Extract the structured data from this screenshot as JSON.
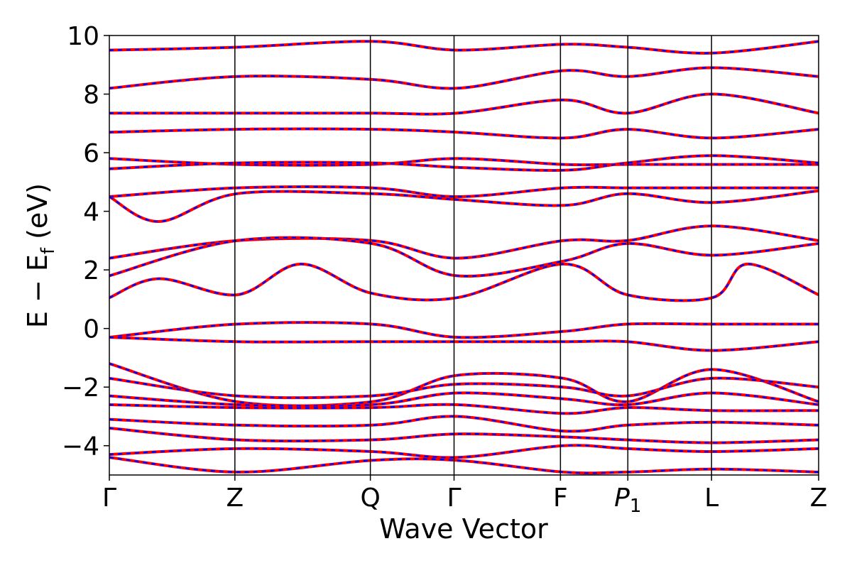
{
  "chart_data": {
    "type": "line",
    "title": "",
    "xlabel": "Wave Vector",
    "ylabel_main": "E − E",
    "ylabel_sub": "f",
    "ylabel_unit": " (eV)",
    "ylim": [
      -5,
      10
    ],
    "yticks": [
      -4,
      -2,
      0,
      2,
      4,
      6,
      8,
      10
    ],
    "ytick_labels": [
      "−4",
      "−2",
      "0",
      "2",
      "4",
      "6",
      "8",
      "10"
    ],
    "kpath": [
      {
        "label": "Γ",
        "x": 0.0
      },
      {
        "label": "Z",
        "x": 0.177
      },
      {
        "label": "Q",
        "x": 0.368
      },
      {
        "label": "Γ",
        "x": 0.486
      },
      {
        "label": "F",
        "x": 0.636
      },
      {
        "label": "P",
        "sub": "1",
        "x": 0.731
      },
      {
        "label": "L",
        "x": 0.849
      },
      {
        "label": "Z",
        "x": 1.0
      }
    ],
    "xlim": [
      0,
      1.0
    ],
    "grid": false,
    "legend": "none",
    "colors": {
      "series_a": "#ff0000",
      "series_b": "#0000ff"
    },
    "series": [
      {
        "values": [
          [
            0,
            9.5
          ],
          [
            0.18,
            9.6
          ],
          [
            0.37,
            9.8
          ],
          [
            0.49,
            9.5
          ],
          [
            0.64,
            9.7
          ],
          [
            0.73,
            9.6
          ],
          [
            0.85,
            9.4
          ],
          [
            1.0,
            9.8
          ]
        ]
      },
      {
        "values": [
          [
            0,
            8.2
          ],
          [
            0.18,
            8.6
          ],
          [
            0.37,
            8.5
          ],
          [
            0.49,
            8.2
          ],
          [
            0.64,
            8.8
          ],
          [
            0.73,
            8.6
          ],
          [
            0.85,
            8.9
          ],
          [
            1.0,
            8.6
          ]
        ]
      },
      {
        "values": [
          [
            0,
            7.35
          ],
          [
            0.18,
            7.35
          ],
          [
            0.37,
            7.35
          ],
          [
            0.49,
            7.35
          ],
          [
            0.64,
            7.8
          ],
          [
            0.73,
            7.35
          ],
          [
            0.85,
            8.0
          ],
          [
            1.0,
            7.35
          ]
        ]
      },
      {
        "values": [
          [
            0,
            6.7
          ],
          [
            0.18,
            6.8
          ],
          [
            0.37,
            6.8
          ],
          [
            0.49,
            6.7
          ],
          [
            0.64,
            6.5
          ],
          [
            0.73,
            6.8
          ],
          [
            0.85,
            6.5
          ],
          [
            1.0,
            6.8
          ]
        ]
      },
      {
        "values": [
          [
            0,
            5.8
          ],
          [
            0.18,
            5.6
          ],
          [
            0.37,
            5.6
          ],
          [
            0.49,
            5.8
          ],
          [
            0.64,
            5.6
          ],
          [
            0.73,
            5.6
          ],
          [
            0.85,
            5.6
          ],
          [
            1.0,
            5.6
          ]
        ]
      },
      {
        "values": [
          [
            0,
            5.45
          ],
          [
            0.18,
            5.65
          ],
          [
            0.37,
            5.65
          ],
          [
            0.49,
            5.5
          ],
          [
            0.64,
            5.4
          ],
          [
            0.73,
            5.65
          ],
          [
            0.85,
            5.9
          ],
          [
            1.0,
            5.65
          ]
        ]
      },
      {
        "values": [
          [
            0,
            4.5
          ],
          [
            0.18,
            4.8
          ],
          [
            0.37,
            4.8
          ],
          [
            0.49,
            4.5
          ],
          [
            0.64,
            4.8
          ],
          [
            0.73,
            4.8
          ],
          [
            0.85,
            4.8
          ],
          [
            1.0,
            4.8
          ]
        ]
      },
      {
        "values": [
          [
            0,
            4.5
          ],
          [
            0.07,
            3.65
          ],
          [
            0.18,
            4.6
          ],
          [
            0.37,
            4.6
          ],
          [
            0.49,
            4.4
          ],
          [
            0.64,
            4.2
          ],
          [
            0.73,
            4.6
          ],
          [
            0.85,
            4.3
          ],
          [
            1.0,
            4.7
          ]
        ]
      },
      {
        "values": [
          [
            0,
            2.4
          ],
          [
            0.18,
            3.0
          ],
          [
            0.37,
            3.0
          ],
          [
            0.49,
            2.4
          ],
          [
            0.64,
            3.0
          ],
          [
            0.73,
            3.0
          ],
          [
            0.85,
            3.5
          ],
          [
            1.0,
            3.0
          ]
        ]
      },
      {
        "values": [
          [
            0,
            1.8
          ],
          [
            0.18,
            3.0
          ],
          [
            0.37,
            2.9
          ],
          [
            0.49,
            1.8
          ],
          [
            0.64,
            2.3
          ],
          [
            0.73,
            2.9
          ],
          [
            0.85,
            2.5
          ],
          [
            1.0,
            2.9
          ]
        ]
      },
      {
        "values": [
          [
            0,
            1.05
          ],
          [
            0.07,
            1.7
          ],
          [
            0.18,
            1.15
          ],
          [
            0.27,
            2.2
          ],
          [
            0.37,
            1.2
          ],
          [
            0.49,
            1.05
          ],
          [
            0.64,
            2.2
          ],
          [
            0.73,
            1.15
          ],
          [
            0.85,
            1.05
          ],
          [
            0.9,
            2.2
          ],
          [
            1.0,
            1.15
          ]
        ]
      },
      {
        "values": [
          [
            0,
            -0.3
          ],
          [
            0.18,
            0.15
          ],
          [
            0.37,
            0.15
          ],
          [
            0.49,
            -0.3
          ],
          [
            0.64,
            -0.1
          ],
          [
            0.73,
            0.15
          ],
          [
            0.85,
            0.15
          ],
          [
            1.0,
            0.15
          ]
        ]
      },
      {
        "values": [
          [
            0,
            -0.3
          ],
          [
            0.18,
            -0.45
          ],
          [
            0.37,
            -0.45
          ],
          [
            0.49,
            -0.45
          ],
          [
            0.64,
            -0.45
          ],
          [
            0.73,
            -0.45
          ],
          [
            0.85,
            -0.75
          ],
          [
            1.0,
            -0.45
          ]
        ]
      },
      {
        "values": [
          [
            0,
            -1.2
          ],
          [
            0.18,
            -2.5
          ],
          [
            0.37,
            -2.5
          ],
          [
            0.49,
            -1.6
          ],
          [
            0.64,
            -1.7
          ],
          [
            0.73,
            -2.5
          ],
          [
            0.85,
            -1.4
          ],
          [
            1.0,
            -2.5
          ]
        ]
      },
      {
        "values": [
          [
            0,
            -1.7
          ],
          [
            0.18,
            -2.3
          ],
          [
            0.37,
            -2.3
          ],
          [
            0.49,
            -1.9
          ],
          [
            0.64,
            -2.0
          ],
          [
            0.73,
            -2.3
          ],
          [
            0.85,
            -1.7
          ],
          [
            1.0,
            -2.0
          ]
        ]
      },
      {
        "values": [
          [
            0,
            -2.3
          ],
          [
            0.18,
            -2.6
          ],
          [
            0.37,
            -2.6
          ],
          [
            0.49,
            -2.2
          ],
          [
            0.64,
            -2.4
          ],
          [
            0.73,
            -2.6
          ],
          [
            0.85,
            -2.2
          ],
          [
            1.0,
            -2.6
          ]
        ]
      },
      {
        "values": [
          [
            0,
            -2.6
          ],
          [
            0.18,
            -2.7
          ],
          [
            0.37,
            -2.7
          ],
          [
            0.49,
            -2.6
          ],
          [
            0.64,
            -2.9
          ],
          [
            0.73,
            -2.7
          ],
          [
            0.85,
            -2.8
          ],
          [
            1.0,
            -2.8
          ]
        ]
      },
      {
        "values": [
          [
            0,
            -3.1
          ],
          [
            0.18,
            -3.3
          ],
          [
            0.37,
            -3.3
          ],
          [
            0.49,
            -3.0
          ],
          [
            0.64,
            -3.5
          ],
          [
            0.73,
            -3.3
          ],
          [
            0.85,
            -3.2
          ],
          [
            1.0,
            -3.3
          ]
        ]
      },
      {
        "values": [
          [
            0,
            -3.4
          ],
          [
            0.18,
            -3.8
          ],
          [
            0.37,
            -3.8
          ],
          [
            0.49,
            -3.6
          ],
          [
            0.64,
            -3.7
          ],
          [
            0.73,
            -3.8
          ],
          [
            0.85,
            -3.9
          ],
          [
            1.0,
            -3.8
          ]
        ]
      },
      {
        "values": [
          [
            0,
            -4.3
          ],
          [
            0.18,
            -4.1
          ],
          [
            0.37,
            -4.2
          ],
          [
            0.49,
            -4.4
          ],
          [
            0.64,
            -4.0
          ],
          [
            0.73,
            -4.1
          ],
          [
            0.85,
            -4.2
          ],
          [
            1.0,
            -4.1
          ]
        ]
      },
      {
        "values": [
          [
            0,
            -4.4
          ],
          [
            0.18,
            -4.9
          ],
          [
            0.37,
            -4.5
          ],
          [
            0.49,
            -4.5
          ],
          [
            0.64,
            -4.9
          ],
          [
            0.73,
            -4.9
          ],
          [
            0.85,
            -4.8
          ],
          [
            1.0,
            -4.9
          ]
        ]
      }
    ]
  }
}
